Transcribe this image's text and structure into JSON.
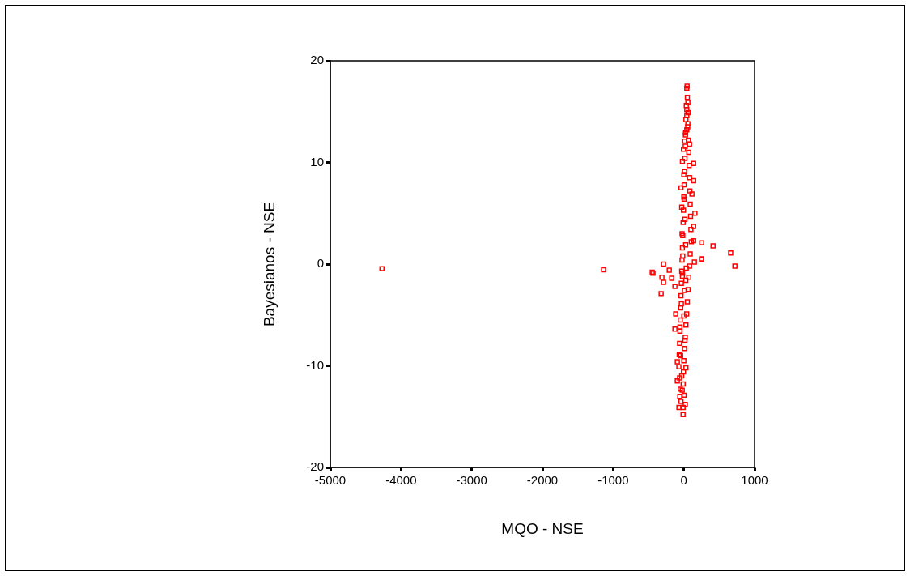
{
  "chart_data": {
    "type": "scatter",
    "xlabel": "MQO - NSE",
    "ylabel": "Bayesianos - NSE",
    "xlim": [
      -5000,
      1000
    ],
    "ylim": [
      -20,
      20
    ],
    "xticks": [
      -5000,
      -4000,
      -3000,
      -2000,
      -1000,
      0,
      1000
    ],
    "yticks": [
      -20,
      -10,
      0,
      10,
      20
    ],
    "marker": "square",
    "series": [
      {
        "color": "#ff0000",
        "x": [
          -4270,
          -1135,
          -447,
          -436,
          -321,
          -310,
          -287,
          -287,
          -206,
          -172,
          -126,
          -115,
          -126,
          -92,
          -92,
          -69,
          -11,
          -11,
          -57,
          -23,
          42,
          57,
          42,
          42,
          57,
          42,
          23,
          80,
          138,
          138,
          115,
          157,
          138,
          252,
          413,
          252,
          662,
          722,
          138,
          149,
          252,
          46,
          50,
          35,
          60,
          30,
          55,
          25,
          65,
          20,
          70,
          15,
          75,
          10,
          80,
          5,
          85,
          0,
          90,
          -5,
          95,
          -10,
          100,
          -15,
          105,
          -20,
          90,
          -25,
          80,
          -30,
          70,
          -35,
          60,
          -40,
          50,
          -45,
          40,
          -50,
          30,
          -55,
          20,
          -60,
          10,
          -65,
          0,
          -70,
          -5,
          -60,
          -10,
          -50,
          5,
          -40,
          20,
          -30,
          30,
          -45,
          15,
          -55,
          0,
          -35,
          10,
          -20,
          34,
          -15,
          25,
          -25,
          15,
          -30,
          5,
          -40,
          0,
          -20,
          -5,
          12,
          -18,
          28
        ],
        "values": [
          -0.45,
          -0.56,
          -0.8,
          -0.9,
          -2.9,
          -1.3,
          0,
          -1.8,
          -0.6,
          -1.4,
          -2.2,
          -4.9,
          -6.4,
          -9.6,
          -11.5,
          -14.1,
          -14.8,
          -14.1,
          -13.0,
          -12.4,
          17.3,
          15.9,
          15.2,
          14.6,
          13.8,
          13.2,
          12.7,
          11.8,
          9.9,
          8.2,
          6.9,
          5.0,
          3.7,
          2.1,
          1.8,
          0.5,
          1.1,
          -0.2,
          2.3,
          0.2,
          0.5,
          17.5,
          16.4,
          15.6,
          14.9,
          14.2,
          13.5,
          12.9,
          12.2,
          11.6,
          11.0,
          10.4,
          9.7,
          9.1,
          8.5,
          7.8,
          7.2,
          6.6,
          5.9,
          5.3,
          4.7,
          4.1,
          3.4,
          2.8,
          2.2,
          1.6,
          1.0,
          0.4,
          -0.2,
          -0.7,
          -1.3,
          -1.9,
          -2.5,
          -3.1,
          -3.7,
          -4.3,
          -4.9,
          -5.5,
          -6.0,
          -6.6,
          -7.2,
          -7.8,
          -8.3,
          -8.9,
          -9.5,
          -10.1,
          -10.6,
          -11.2,
          -11.8,
          -12.3,
          -12.9,
          -13.5,
          -13.8,
          -11.0,
          -10.2,
          -9.0,
          -7.5,
          -6.2,
          -5.1,
          -3.9,
          -2.6,
          -1.2,
          -0.4,
          0.8,
          1.9,
          3.0,
          4.4,
          5.6,
          6.4,
          7.5,
          8.8,
          10.1,
          11.3,
          12.1,
          -0.9,
          -1.6
        ]
      }
    ]
  }
}
